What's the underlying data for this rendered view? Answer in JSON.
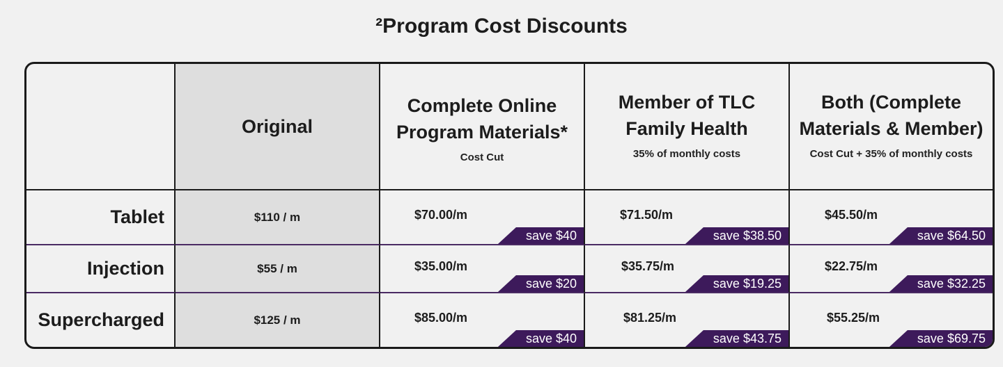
{
  "title": "²Program Cost Discounts",
  "columns": [
    {
      "title": "",
      "subtitle": ""
    },
    {
      "title": "Original",
      "subtitle": ""
    },
    {
      "title": "Complete Online Program Materials*",
      "subtitle": "Cost Cut"
    },
    {
      "title": "Member of TLC Family Health",
      "subtitle": "35% of monthly costs"
    },
    {
      "title": "Both (Complete Materials & Member)",
      "subtitle": "Cost Cut + 35% of monthly costs"
    }
  ],
  "rows": [
    {
      "label": "Tablet",
      "original": "$110 / m",
      "online": {
        "price": "$70.00/m",
        "save": "save $40"
      },
      "member": {
        "price": "$71.50/m",
        "save": "save $38.50"
      },
      "both": {
        "price": "$45.50/m",
        "save": "save $64.50"
      }
    },
    {
      "label": "Injection",
      "original": "$55 / m",
      "online": {
        "price": "$35.00/m",
        "save": "save $20"
      },
      "member": {
        "price": "$35.75/m",
        "save": "save $19.25"
      },
      "both": {
        "price": "$22.75/m",
        "save": "save $32.25"
      }
    },
    {
      "label": "Supercharged",
      "original": "$125 / m",
      "online": {
        "price": "$85.00/m",
        "save": "save $40"
      },
      "member": {
        "price": "$81.25/m",
        "save": "save $43.75"
      },
      "both": {
        "price": "$55.25/m",
        "save": "save $69.75"
      }
    }
  ],
  "colors": {
    "background": "#f1f1f1",
    "original_column": "#dedede",
    "save_tag": "#3d1a5b",
    "border": "#1a1a1a"
  }
}
